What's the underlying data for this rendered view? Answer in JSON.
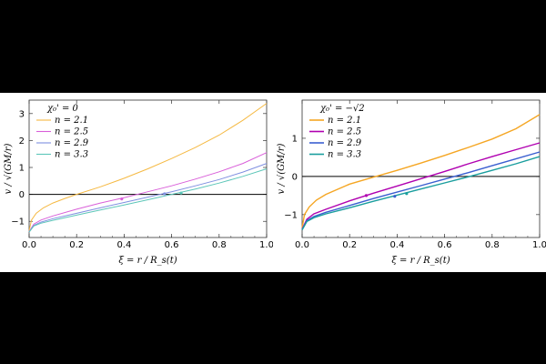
{
  "chart_data": [
    {
      "type": "line",
      "title": "",
      "xlabel": "ξ = r / R_s(t)",
      "ylabel": "v / √(GM/r)",
      "xlim": [
        0,
        1
      ],
      "ylim": [
        -1.6,
        3.5
      ],
      "xticks": [
        "0.0",
        "0.2",
        "0.4",
        "0.6",
        "0.8",
        "1.0"
      ],
      "yticks": [
        "-1",
        "0",
        "1",
        "2",
        "3"
      ],
      "legend_title": "χ₀' = 0",
      "legend_position": "top-left",
      "zero_line": true,
      "series": [
        {
          "name": "n = 2.1",
          "color": "#f5b942",
          "points": [
            [
              0,
              -1.35
            ],
            [
              0.01,
              -0.95
            ],
            [
              0.03,
              -0.7
            ],
            [
              0.06,
              -0.5
            ],
            [
              0.1,
              -0.32
            ],
            [
              0.15,
              -0.15
            ],
            [
              0.2,
              0.0
            ],
            [
              0.3,
              0.28
            ],
            [
              0.4,
              0.6
            ],
            [
              0.5,
              0.95
            ],
            [
              0.6,
              1.33
            ],
            [
              0.7,
              1.74
            ],
            [
              0.8,
              2.2
            ],
            [
              0.9,
              2.75
            ],
            [
              1.0,
              3.38
            ]
          ]
        },
        {
          "name": "n = 2.5",
          "color": "#d95fd9",
          "points": [
            [
              0,
              -1.38
            ],
            [
              0.02,
              -1.1
            ],
            [
              0.05,
              -0.95
            ],
            [
              0.1,
              -0.8
            ],
            [
              0.2,
              -0.55
            ],
            [
              0.3,
              -0.32
            ],
            [
              0.4,
              -0.12
            ],
            [
              0.5,
              0.1
            ],
            [
              0.6,
              0.32
            ],
            [
              0.7,
              0.57
            ],
            [
              0.8,
              0.84
            ],
            [
              0.9,
              1.15
            ],
            [
              1.0,
              1.55
            ]
          ]
        },
        {
          "name": "n = 2.9",
          "color": "#7f8fe0",
          "points": [
            [
              0,
              -1.39
            ],
            [
              0.02,
              -1.15
            ],
            [
              0.05,
              -1.03
            ],
            [
              0.1,
              -0.9
            ],
            [
              0.2,
              -0.7
            ],
            [
              0.3,
              -0.5
            ],
            [
              0.4,
              -0.3
            ],
            [
              0.5,
              -0.1
            ],
            [
              0.6,
              0.1
            ],
            [
              0.7,
              0.32
            ],
            [
              0.8,
              0.55
            ],
            [
              0.9,
              0.83
            ],
            [
              1.0,
              1.15
            ]
          ]
        },
        {
          "name": "n = 3.3",
          "color": "#5cc6b8",
          "points": [
            [
              0,
              -1.4
            ],
            [
              0.02,
              -1.17
            ],
            [
              0.05,
              -1.07
            ],
            [
              0.1,
              -0.96
            ],
            [
              0.2,
              -0.77
            ],
            [
              0.3,
              -0.58
            ],
            [
              0.4,
              -0.39
            ],
            [
              0.5,
              -0.2
            ],
            [
              0.6,
              0.0
            ],
            [
              0.7,
              0.2
            ],
            [
              0.8,
              0.42
            ],
            [
              0.9,
              0.67
            ],
            [
              1.0,
              0.95
            ]
          ]
        }
      ],
      "markers": [
        {
          "x": 0.39,
          "y": -0.17,
          "color": "#d95fd9"
        },
        {
          "x": 0.57,
          "y": 0.02,
          "color": "#7f8fe0"
        },
        {
          "x": 0.64,
          "y": 0.05,
          "color": "#5cc6b8"
        }
      ]
    },
    {
      "type": "line",
      "title": "",
      "xlabel": "ξ = r / R_s(t)",
      "ylabel": "v / √(GM/r)",
      "xlim": [
        0,
        1
      ],
      "ylim": [
        -1.6,
        2.0
      ],
      "xticks": [
        "0.0",
        "0.2",
        "0.4",
        "0.6",
        "0.8",
        "1.0"
      ],
      "yticks": [
        "-1",
        "0",
        "1"
      ],
      "legend_title": "χ₀' = −√2",
      "legend_position": "top-left",
      "zero_line": true,
      "series": [
        {
          "name": "n = 2.1",
          "color": "#f5a623",
          "points": [
            [
              0,
              -1.35
            ],
            [
              0.01,
              -1.0
            ],
            [
              0.03,
              -0.8
            ],
            [
              0.06,
              -0.62
            ],
            [
              0.1,
              -0.47
            ],
            [
              0.2,
              -0.2
            ],
            [
              0.3,
              -0.02
            ],
            [
              0.4,
              0.16
            ],
            [
              0.5,
              0.35
            ],
            [
              0.6,
              0.55
            ],
            [
              0.7,
              0.76
            ],
            [
              0.8,
              0.98
            ],
            [
              0.9,
              1.25
            ],
            [
              1.0,
              1.62
            ]
          ]
        },
        {
          "name": "n = 2.5",
          "color": "#b000b0",
          "points": [
            [
              0,
              -1.38
            ],
            [
              0.02,
              -1.12
            ],
            [
              0.05,
              -0.98
            ],
            [
              0.1,
              -0.86
            ],
            [
              0.2,
              -0.64
            ],
            [
              0.3,
              -0.44
            ],
            [
              0.4,
              -0.25
            ],
            [
              0.5,
              -0.06
            ],
            [
              0.6,
              0.13
            ],
            [
              0.7,
              0.33
            ],
            [
              0.8,
              0.52
            ],
            [
              0.9,
              0.7
            ],
            [
              1.0,
              0.88
            ]
          ]
        },
        {
          "name": "n = 2.9",
          "color": "#3a5fd0",
          "points": [
            [
              0,
              -1.39
            ],
            [
              0.02,
              -1.16
            ],
            [
              0.05,
              -1.05
            ],
            [
              0.1,
              -0.94
            ],
            [
              0.2,
              -0.76
            ],
            [
              0.3,
              -0.58
            ],
            [
              0.4,
              -0.41
            ],
            [
              0.5,
              -0.24
            ],
            [
              0.6,
              -0.07
            ],
            [
              0.7,
              0.1
            ],
            [
              0.8,
              0.28
            ],
            [
              0.9,
              0.46
            ],
            [
              1.0,
              0.64
            ]
          ]
        },
        {
          "name": "n = 3.3",
          "color": "#1a9e9e",
          "points": [
            [
              0,
              -1.4
            ],
            [
              0.02,
              -1.18
            ],
            [
              0.05,
              -1.08
            ],
            [
              0.1,
              -0.98
            ],
            [
              0.2,
              -0.82
            ],
            [
              0.3,
              -0.65
            ],
            [
              0.4,
              -0.49
            ],
            [
              0.5,
              -0.33
            ],
            [
              0.6,
              -0.17
            ],
            [
              0.7,
              -0.01
            ],
            [
              0.8,
              0.16
            ],
            [
              0.9,
              0.33
            ],
            [
              1.0,
              0.52
            ]
          ]
        }
      ],
      "markers": [
        {
          "x": 0.27,
          "y": -0.5,
          "color": "#b000b0"
        },
        {
          "x": 0.39,
          "y": -0.52,
          "color": "#3a5fd0"
        },
        {
          "x": 0.44,
          "y": -0.45,
          "color": "#1a9e9e"
        }
      ]
    }
  ]
}
